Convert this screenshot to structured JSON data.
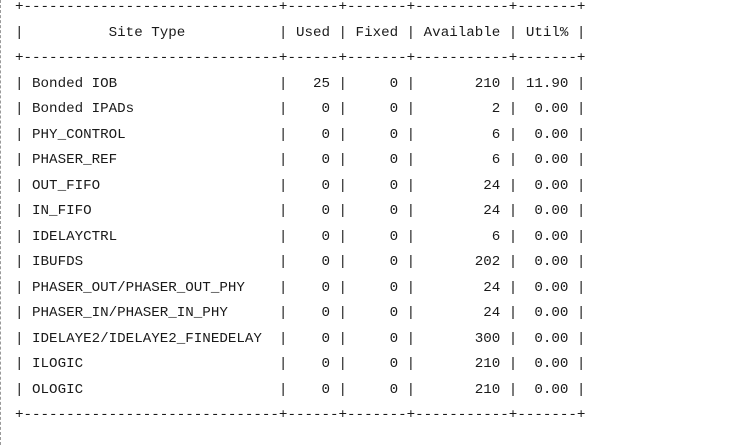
{
  "table": {
    "lines": [
      "+------------------------------+------+-------+-----------+-------+",
      "|          Site Type           | Used | Fixed | Available | Util% |",
      "+------------------------------+------+-------+-----------+-------+",
      "| Bonded IOB                   |   25 |     0 |       210 | 11.90 |",
      "| Bonded IPADs                 |    0 |     0 |         2 |  0.00 |",
      "| PHY_CONTROL                  |    0 |     0 |         6 |  0.00 |",
      "| PHASER_REF                   |    0 |     0 |         6 |  0.00 |",
      "| OUT_FIFO                     |    0 |     0 |        24 |  0.00 |",
      "| IN_FIFO                      |    0 |     0 |        24 |  0.00 |",
      "| IDELAYCTRL                   |    0 |     0 |         6 |  0.00 |",
      "| IBUFDS                       |    0 |     0 |       202 |  0.00 |",
      "| PHASER_OUT/PHASER_OUT_PHY    |    0 |     0 |        24 |  0.00 |",
      "| PHASER_IN/PHASER_IN_PHY      |    0 |     0 |        24 |  0.00 |",
      "| IDELAYE2/IDELAYE2_FINEDELAY  |    0 |     0 |       300 |  0.00 |",
      "| ILOGIC                       |    0 |     0 |       210 |  0.00 |",
      "| OLOGIC                       |    0 |     0 |       210 |  0.00 |",
      "+------------------------------+------+-------+-----------+-------+"
    ]
  }
}
